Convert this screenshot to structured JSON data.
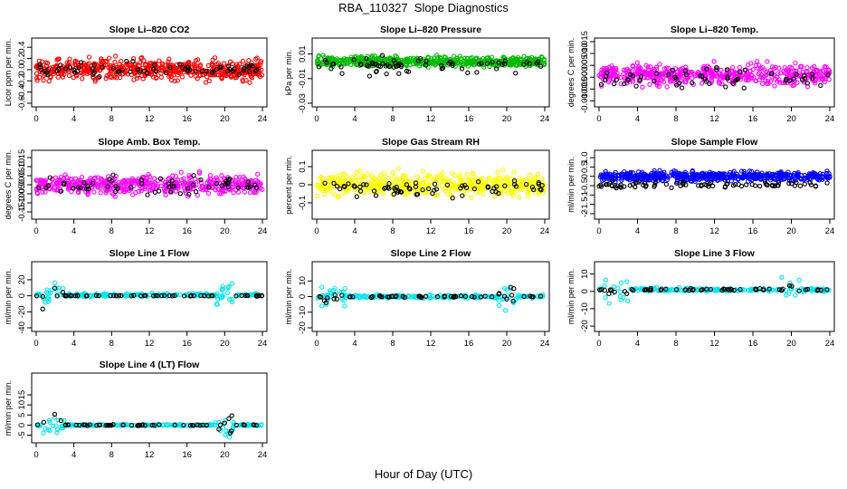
{
  "figure": {
    "title": "RBA_110327  Slope Diagnostics",
    "xlabel": "Hour of Day (UTC)"
  },
  "chart_data": [
    {
      "type": "scatter",
      "title": "Slope Li–820 CO2",
      "ylabel": "Licor ppm per min.",
      "xlim": [
        0,
        24
      ],
      "ylim": [
        -0.6,
        0.5
      ],
      "yticks": [
        "-0.6",
        "-0.4",
        "-0.2",
        "0.0",
        "0.2",
        "0.4"
      ],
      "xticks": [
        "0",
        "4",
        "8",
        "12",
        "16",
        "20",
        "24"
      ],
      "series": [
        {
          "color": "#ff0000",
          "n": 520,
          "center": 0.0,
          "spread": 0.18
        },
        {
          "color": "#000000",
          "n": 70,
          "center": 0.0,
          "spread": 0.12
        }
      ]
    },
    {
      "type": "scatter",
      "title": "Slope Li–820 Pressure",
      "ylabel": "kPa per min.",
      "xlim": [
        0,
        24
      ],
      "ylim": [
        -0.03,
        0.02
      ],
      "yticks": [
        "-0.03",
        "-0.01",
        "0.01"
      ],
      "xticks": [
        "0",
        "4",
        "8",
        "12",
        "16",
        "20",
        "24"
      ],
      "series": [
        {
          "color": "#00bb00",
          "n": 520,
          "center": 0.004,
          "spread": 0.004
        },
        {
          "color": "#000000",
          "n": 70,
          "center": 0.0,
          "spread": 0.006
        }
      ]
    },
    {
      "type": "scatter",
      "title": "Slope Li–820 Temp.",
      "ylabel": "degrees C per min.",
      "xlim": [
        0,
        24
      ],
      "ylim": [
        -0.011,
        0.015
      ],
      "yticks": [
        "-0.010",
        "-0.005",
        "0.000",
        "0.005",
        "0.010",
        "0.015"
      ],
      "xticks": [
        "0",
        "4",
        "8",
        "12",
        "16",
        "20",
        "24"
      ],
      "series": [
        {
          "color": "#ff00ff",
          "n": 480,
          "center": 0.001,
          "spread": 0.004
        },
        {
          "color": "#000000",
          "n": 60,
          "center": 0.0,
          "spread": 0.004
        }
      ]
    },
    {
      "type": "scatter",
      "title": "Slope Amb. Box Temp.",
      "ylabel": "degrees C per min.",
      "xlim": [
        0,
        24
      ],
      "ylim": [
        -0.17,
        0.17
      ],
      "yticks": [
        "-0.15",
        "-0.10",
        "-0.05",
        "0.00",
        "0.05",
        "0.10",
        "0.15"
      ],
      "xticks": [
        "0",
        "4",
        "8",
        "12",
        "16",
        "20",
        "24"
      ],
      "series": [
        {
          "color": "#ff00ff",
          "n": 480,
          "center": 0.0,
          "spread": 0.05
        },
        {
          "color": "#000000",
          "n": 60,
          "center": 0.0,
          "spread": 0.05
        }
      ]
    },
    {
      "type": "scatter",
      "title": "Slope Gas Stream RH",
      "ylabel": "percent per min.",
      "xlim": [
        0,
        24
      ],
      "ylim": [
        -0.17,
        0.17
      ],
      "yticks": [
        "-0.1",
        "0",
        "0.1"
      ],
      "xticks": [
        "0",
        "4",
        "8",
        "12",
        "16",
        "20",
        "24"
      ],
      "series": [
        {
          "color": "#ffff00",
          "n": 520,
          "center": 0.0,
          "spread": 0.06
        },
        {
          "color": "#000000",
          "n": 70,
          "center": -0.02,
          "spread": 0.04
        }
      ]
    },
    {
      "type": "scatter",
      "title": "Slope Sample Flow",
      "ylabel": "ml/min per min.",
      "xlim": [
        0,
        24
      ],
      "ylim": [
        -2.1,
        1.2
      ],
      "yticks": [
        "-2",
        "-1.5",
        "-1",
        "-0.5",
        "0",
        "0.5",
        "1.0"
      ],
      "xticks": [
        "0",
        "4",
        "8",
        "12",
        "16",
        "20",
        "24"
      ],
      "series": [
        {
          "color": "#0000ff",
          "n": 520,
          "center": 0.0,
          "spread": 0.25
        },
        {
          "color": "#000000",
          "n": 80,
          "center": -0.45,
          "spread": 0.15
        }
      ]
    },
    {
      "type": "scatter",
      "title": "Slope Line 1 Flow",
      "ylabel": "ml/min per min.",
      "xlim": [
        0,
        24
      ],
      "ylim": [
        -40,
        38
      ],
      "yticks": [
        "-40",
        "-20",
        "0",
        "20"
      ],
      "xticks": [
        "0",
        "4",
        "8",
        "12",
        "16",
        "20",
        "24"
      ],
      "series": [
        {
          "color": "#00e5ee",
          "n": 200,
          "center": 1,
          "spread": 2
        },
        {
          "color": "#000000",
          "n": 60,
          "center": 0,
          "spread": 0.6
        }
      ]
    },
    {
      "type": "scatter",
      "title": "Slope Line 2 Flow",
      "ylabel": "ml/min per min.",
      "xlim": [
        0,
        24
      ],
      "ylim": [
        -20,
        20
      ],
      "yticks": [
        "-20",
        "-10",
        "0",
        "10"
      ],
      "xticks": [
        "0",
        "4",
        "8",
        "12",
        "16",
        "20",
        "24"
      ],
      "series": [
        {
          "color": "#00e5ee",
          "n": 200,
          "center": 0,
          "spread": 1
        },
        {
          "color": "#000000",
          "n": 60,
          "center": 0,
          "spread": 0.6
        }
      ]
    },
    {
      "type": "scatter",
      "title": "Slope Line 3 Flow",
      "ylabel": "ml/min per min.",
      "xlim": [
        0,
        24
      ],
      "ylim": [
        -21,
        15
      ],
      "yticks": [
        "-20",
        "-10",
        "0",
        "10"
      ],
      "xticks": [
        "0",
        "4",
        "8",
        "12",
        "16",
        "20",
        "24"
      ],
      "series": [
        {
          "color": "#00e5ee",
          "n": 200,
          "center": 1,
          "spread": 1
        },
        {
          "color": "#000000",
          "n": 60,
          "center": 1,
          "spread": 0.6
        }
      ]
    },
    {
      "type": "scatter",
      "title": "Slope Line 4 (LT) Flow",
      "ylabel": "ml/min per min.",
      "xlim": [
        0,
        24
      ],
      "ylim": [
        -7,
        24
      ],
      "yticks": [
        "-5",
        "0",
        "5",
        "10",
        "15"
      ],
      "xticks": [
        "0",
        "4",
        "8",
        "12",
        "16",
        "20",
        "24"
      ],
      "series": [
        {
          "color": "#00e5ee",
          "n": 200,
          "center": 0,
          "spread": 0.3
        },
        {
          "color": "#000000",
          "n": 60,
          "center": 0,
          "spread": 0.3
        }
      ]
    }
  ]
}
